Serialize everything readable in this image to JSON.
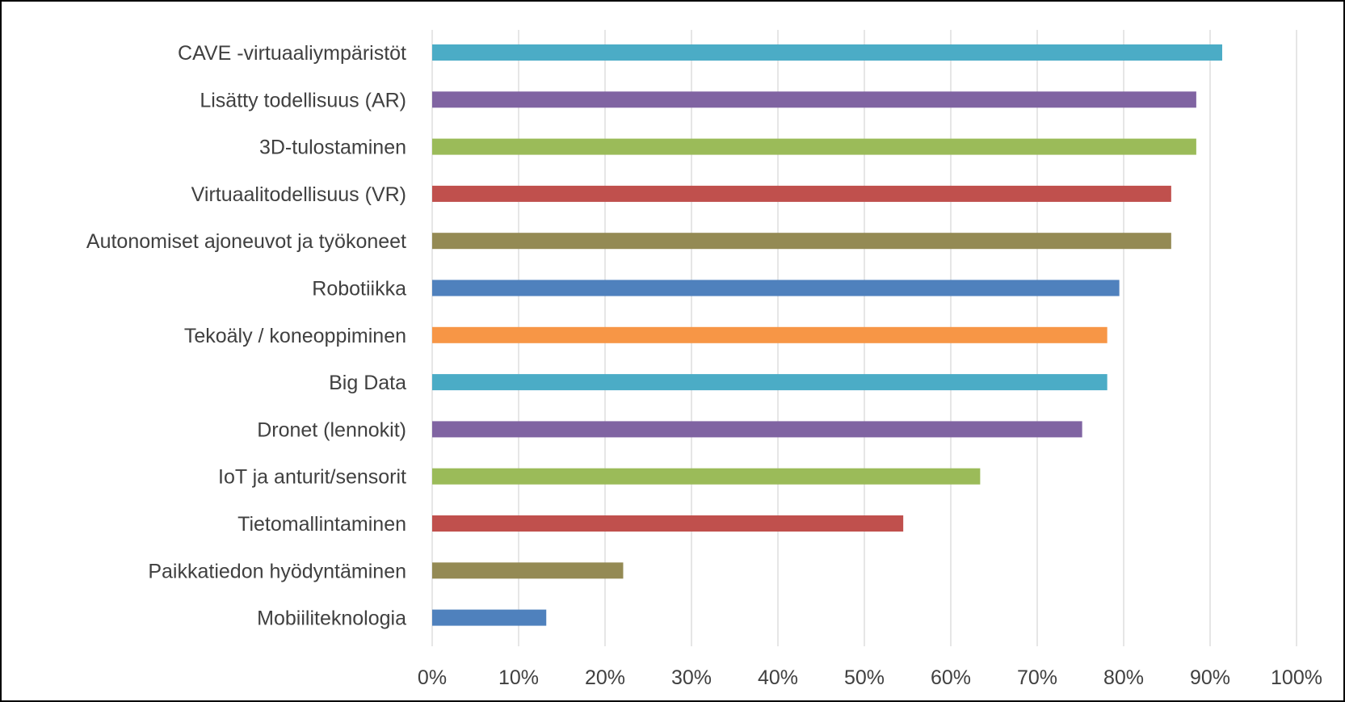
{
  "chart_data": {
    "type": "bar",
    "orientation": "horizontal",
    "categories": [
      "CAVE -virtuaaliympäristöt",
      "Lisätty todellisuus (AR)",
      "3D-tulostaminen",
      "Virtuaalitodellisuus (VR)",
      "Autonomiset ajoneuvot ja työkoneet",
      "Robotiikka",
      "Tekoäly / koneoppiminen",
      "Big Data",
      "Dronet (lennokit)",
      "IoT ja anturit/sensorit",
      "Tietomallintaminen",
      "Paikkatiedon hyödyntäminen",
      "Mobiiliteknologia"
    ],
    "values": [
      91.4,
      88.4,
      88.4,
      85.5,
      85.5,
      79.5,
      78.1,
      78.1,
      75.2,
      63.4,
      54.5,
      22.1,
      13.2
    ],
    "colors": [
      "#4BACC6",
      "#8064A2",
      "#9BBB59",
      "#C0504D",
      "#948A54",
      "#4F81BD",
      "#F79646",
      "#4BACC6",
      "#8064A2",
      "#9BBB59",
      "#C0504D",
      "#948A54",
      "#4F81BD"
    ],
    "x_ticks": [
      "0%",
      "10%",
      "20%",
      "30%",
      "40%",
      "50%",
      "60%",
      "70%",
      "80%",
      "90%",
      "100%"
    ],
    "xlim": [
      0,
      100
    ],
    "unit": "%",
    "title": "",
    "xlabel": "",
    "ylabel": "",
    "grid": "vertical",
    "legend": "none"
  }
}
